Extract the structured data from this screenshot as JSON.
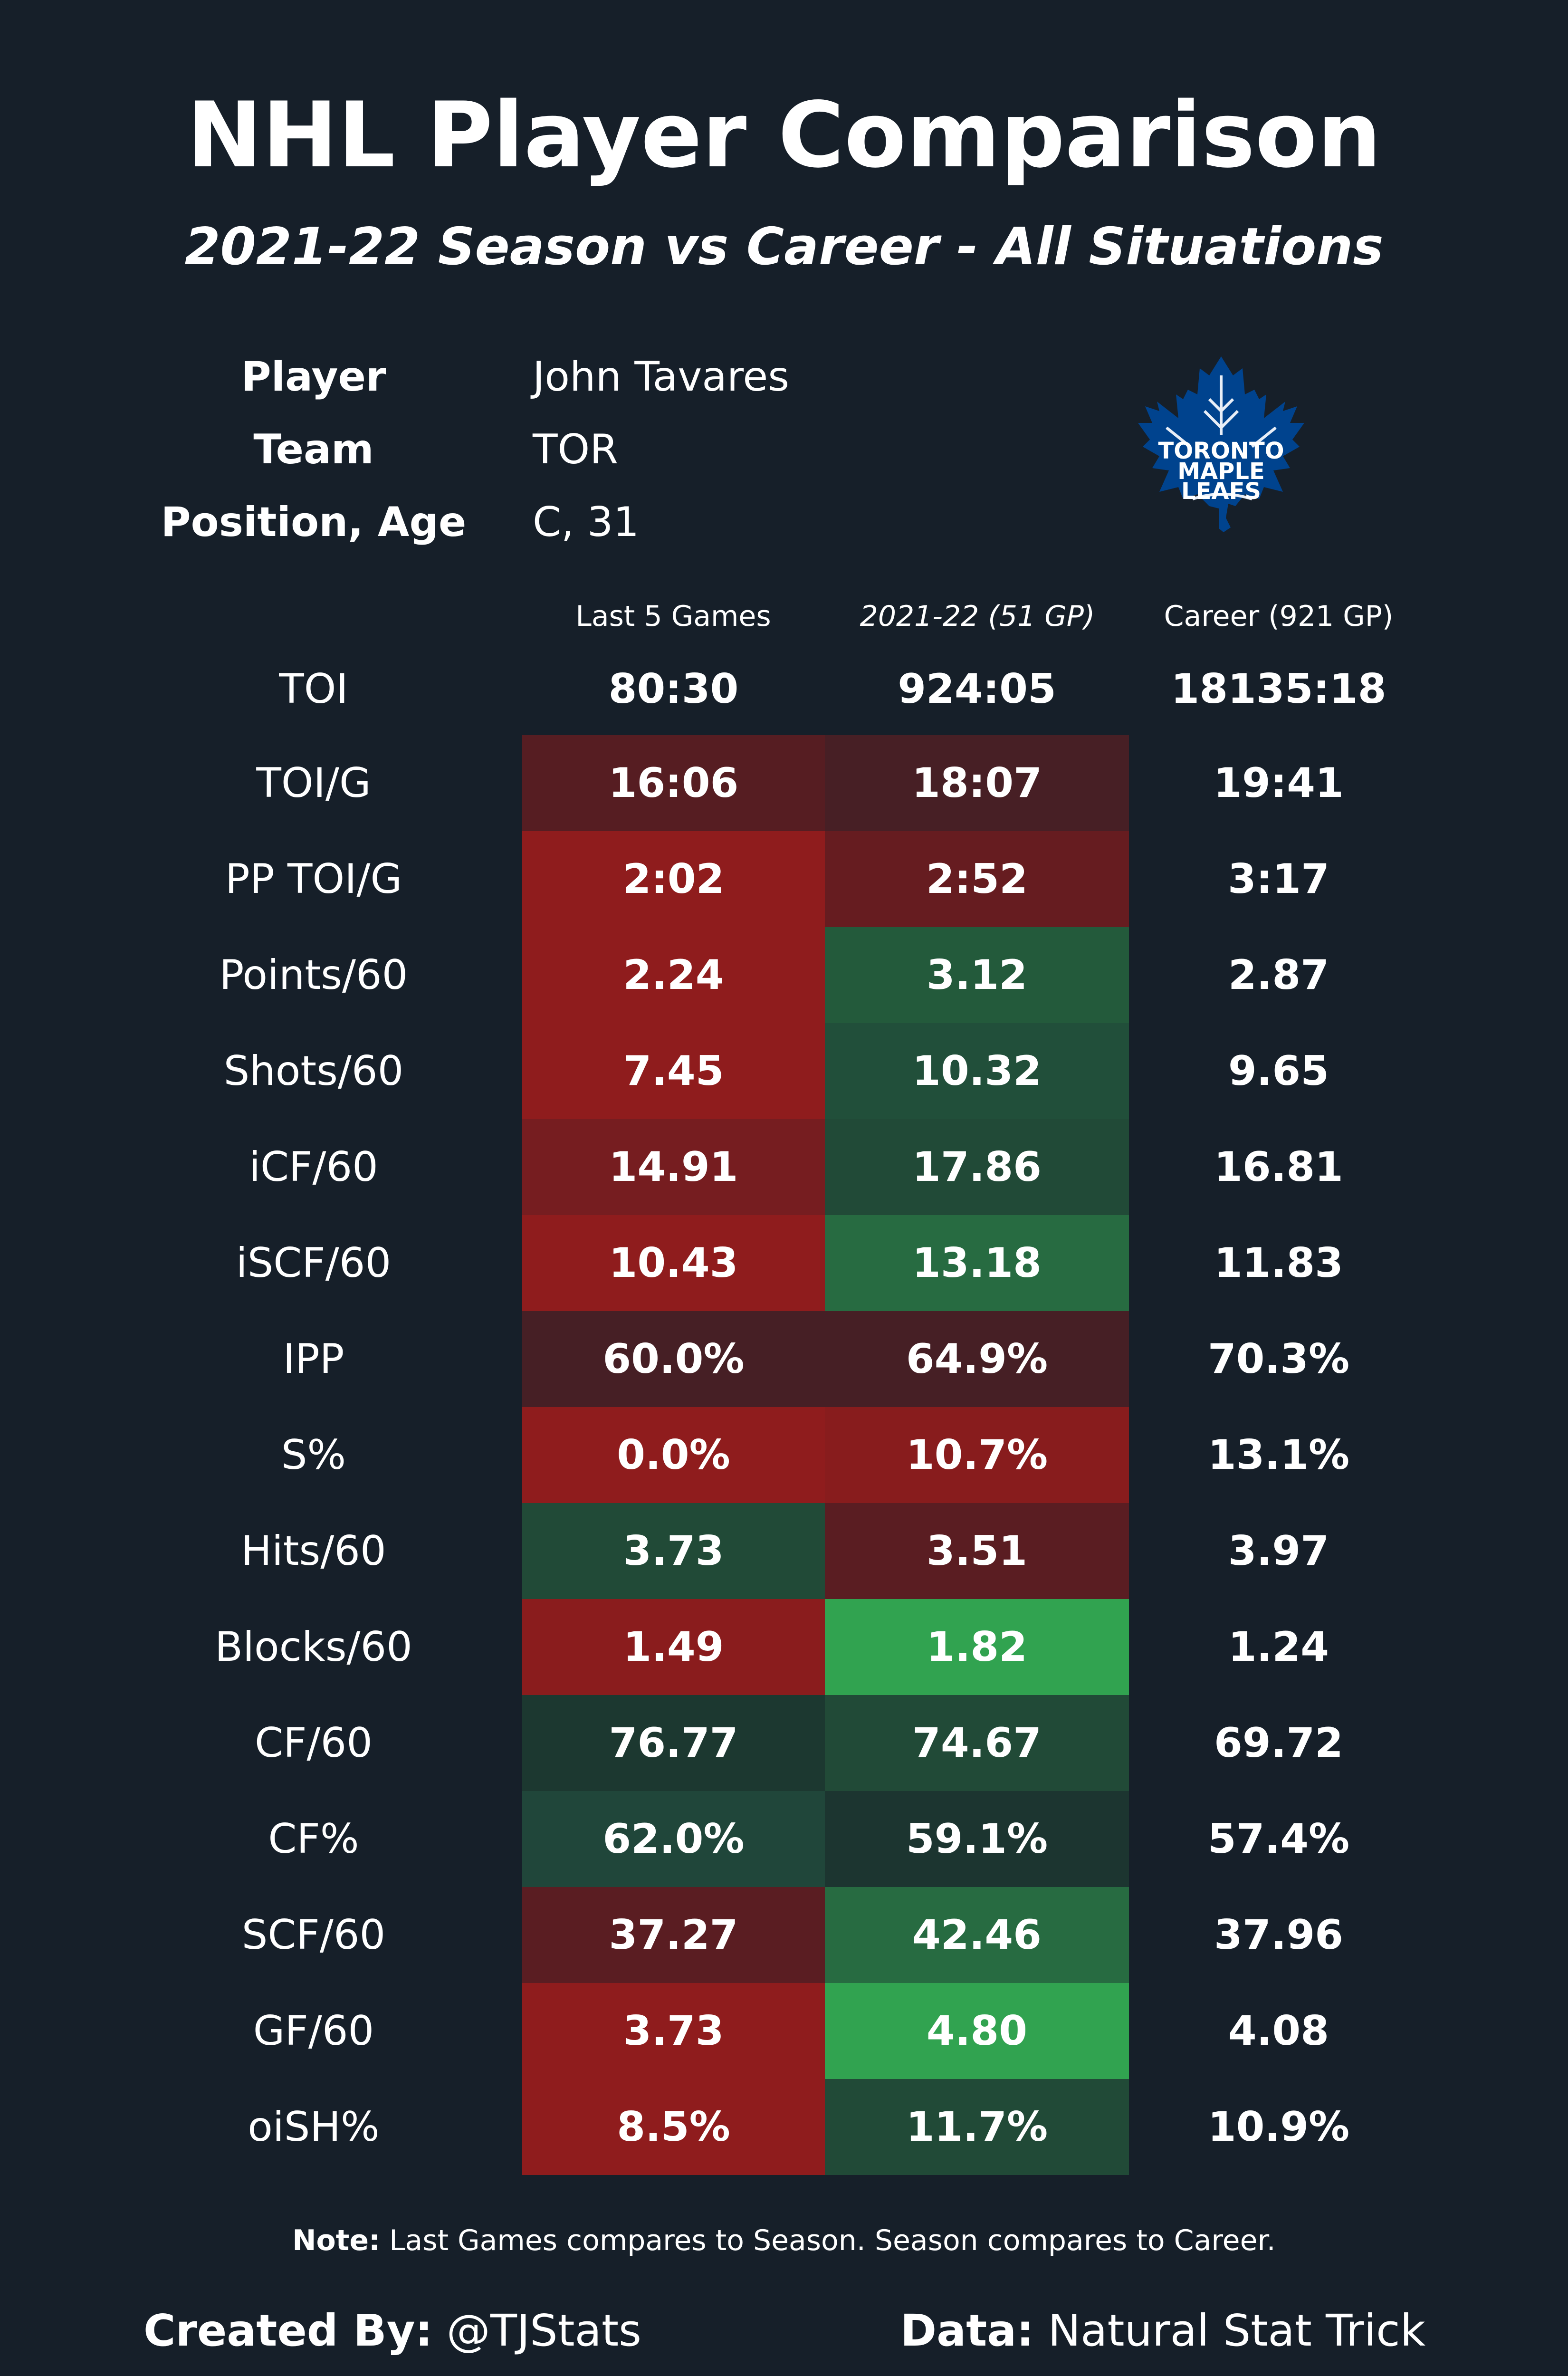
{
  "title": "NHL Player Comparison",
  "subtitle": "2021-22 Season vs Career - All Situations",
  "info": [
    {
      "label": "Player",
      "value": "John Tavares"
    },
    {
      "label": "Team",
      "value": "TOR"
    },
    {
      "label": "Position, Age",
      "value": "C, 31"
    }
  ],
  "logo": {
    "line1": "TORONTO",
    "line2": "MAPLE",
    "line3": "LEAFS",
    "color": "#00438e"
  },
  "columns": [
    "Last 5 Games",
    "2021-22 (51 GP)",
    "Career (921 GP)"
  ],
  "toi": {
    "label": "TOI",
    "values": [
      "80:30",
      "924:05",
      "18135:18"
    ]
  },
  "rows": [
    {
      "label": "TOI/G",
      "values": [
        "16:06",
        "18:07",
        "19:41"
      ],
      "colors": [
        "#561d22",
        "#471f25"
      ]
    },
    {
      "label": "PP TOI/G",
      "values": [
        "2:02",
        "2:52",
        "3:17"
      ],
      "colors": [
        "#8f1c1d",
        "#661c20"
      ]
    },
    {
      "label": "Points/60",
      "values": [
        "2.24",
        "3.12",
        "2.87"
      ],
      "colors": [
        "#8f1c1d",
        "#235a3b"
      ]
    },
    {
      "label": "Shots/60",
      "values": [
        "7.45",
        "10.32",
        "9.65"
      ],
      "colors": [
        "#8f1c1d",
        "#214f3a"
      ]
    },
    {
      "label": "iCF/60",
      "values": [
        "14.91",
        "17.86",
        "16.81"
      ],
      "colors": [
        "#761d20",
        "#214a37"
      ]
    },
    {
      "label": "iSCF/60",
      "values": [
        "10.43",
        "13.18",
        "11.83"
      ],
      "colors": [
        "#8f1c1d",
        "#276b41"
      ]
    },
    {
      "label": "IPP",
      "values": [
        "60.0%",
        "64.9%",
        "70.3%"
      ],
      "colors": [
        "#461f25",
        "#461f25"
      ]
    },
    {
      "label": "S%",
      "values": [
        "0.0%",
        "10.7%",
        "13.1%"
      ],
      "colors": [
        "#8f1c1d",
        "#881c1d"
      ]
    },
    {
      "label": "Hits/60",
      "values": [
        "3.73",
        "3.51",
        "3.97"
      ],
      "colors": [
        "#214a37",
        "#5a1d22"
      ]
    },
    {
      "label": "Blocks/60",
      "values": [
        "1.49",
        "1.82",
        "1.24"
      ],
      "colors": [
        "#8a1c1d",
        "#31a350"
      ]
    },
    {
      "label": "CF/60",
      "values": [
        "76.77",
        "74.67",
        "69.72"
      ],
      "colors": [
        "#1c3830",
        "#214a37"
      ]
    },
    {
      "label": "CF%",
      "values": [
        "62.0%",
        "59.1%",
        "57.4%"
      ],
      "colors": [
        "#20463a",
        "#1c3530"
      ]
    },
    {
      "label": "SCF/60",
      "values": [
        "37.27",
        "42.46",
        "37.96"
      ],
      "colors": [
        "#5a1d22",
        "#276b41"
      ]
    },
    {
      "label": "GF/60",
      "values": [
        "3.73",
        "4.80",
        "4.08"
      ],
      "colors": [
        "#8f1c1d",
        "#31a350"
      ]
    },
    {
      "label": "oiSH%",
      "values": [
        "8.5%",
        "11.7%",
        "10.9%"
      ],
      "colors": [
        "#8f1c1d",
        "#214a37"
      ]
    }
  ],
  "note": {
    "bold": "Note:",
    "text": " Last Games compares to Season. Season compares to Career."
  },
  "footer": {
    "created_label": "Created By:",
    "created_value": " @TJStats",
    "data_label": "Data:",
    "data_value": " Natural Stat Trick"
  }
}
